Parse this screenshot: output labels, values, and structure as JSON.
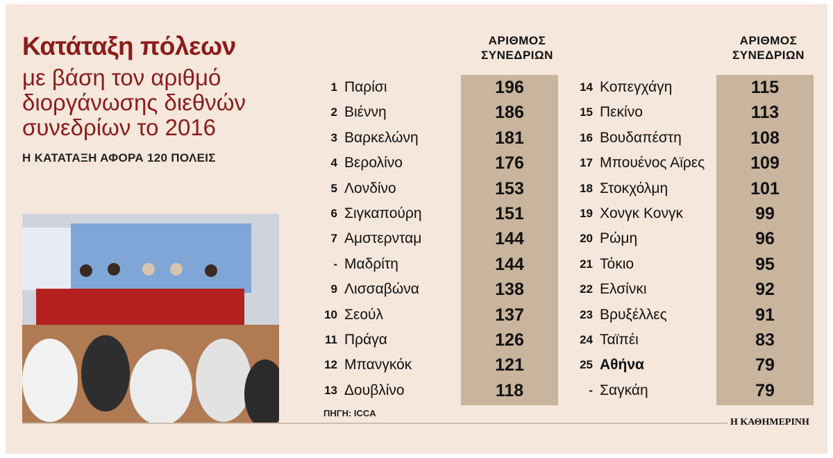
{
  "title": "Κατάταξη πόλεων",
  "subtitle_lines": [
    "με βάση τον αριθμό",
    "διοργάνωσης διεθνών",
    "συνεδρίων το 2016"
  ],
  "note": "Η ΚΑΤΑΤΑΞΗ ΑΦΟΡΑ 120 ΠΟΛΕΙΣ",
  "column_header": [
    "ΑΡΙΘΜΟΣ",
    "ΣΥΝΕΔΡΙΩΝ"
  ],
  "source": "ΠΗΓΗ: ICCA",
  "brand": "Η ΚΑΘΗΜΕΡΙΝΗ",
  "colors": {
    "title": "#8a1c1a",
    "value_band": "#c9b49d",
    "background": "#f6e7dc"
  },
  "chart_data": {
    "type": "table",
    "columns": [
      "rank",
      "city",
      "conferences"
    ],
    "rows": [
      {
        "rank": "1",
        "city": "Παρίσι",
        "value": 196
      },
      {
        "rank": "2",
        "city": "Βιέννη",
        "value": 186
      },
      {
        "rank": "3",
        "city": "Βαρκελώνη",
        "value": 181
      },
      {
        "rank": "4",
        "city": "Βερολίνο",
        "value": 176
      },
      {
        "rank": "5",
        "city": "Λονδίνο",
        "value": 153
      },
      {
        "rank": "6",
        "city": "Σιγκαπούρη",
        "value": 151
      },
      {
        "rank": "7",
        "city": "Αμστερνταμ",
        "value": 144
      },
      {
        "rank": "-",
        "city": "Μαδρίτη",
        "value": 144
      },
      {
        "rank": "9",
        "city": "Λισσαβώνα",
        "value": 138
      },
      {
        "rank": "10",
        "city": "Σεούλ",
        "value": 137
      },
      {
        "rank": "11",
        "city": "Πράγα",
        "value": 126
      },
      {
        "rank": "12",
        "city": "Μπανγκόκ",
        "value": 121
      },
      {
        "rank": "13",
        "city": "Δουβλίνο",
        "value": 118
      },
      {
        "rank": "14",
        "city": "Κοπεγχάγη",
        "value": 115
      },
      {
        "rank": "15",
        "city": "Πεκίνο",
        "value": 113
      },
      {
        "rank": "16",
        "city": "Βουδαπέστη",
        "value": 108
      },
      {
        "rank": "17",
        "city": "Μπουένος Αϊρες",
        "value": 109
      },
      {
        "rank": "18",
        "city": "Στοκχόλμη",
        "value": 101
      },
      {
        "rank": "19",
        "city": "Χονγκ Κονγκ",
        "value": 99
      },
      {
        "rank": "20",
        "city": "Ρώμη",
        "value": 96
      },
      {
        "rank": "21",
        "city": "Τόκιο",
        "value": 95
      },
      {
        "rank": "22",
        "city": "Ελσίνκι",
        "value": 92
      },
      {
        "rank": "23",
        "city": "Βρυξέλλες",
        "value": 91
      },
      {
        "rank": "24",
        "city": "Ταϊπέι",
        "value": 83
      },
      {
        "rank": "25",
        "city": "Αθήνα",
        "value": 79,
        "highlight": true
      },
      {
        "rank": "-",
        "city": "Σαγκάη",
        "value": 79
      }
    ]
  }
}
